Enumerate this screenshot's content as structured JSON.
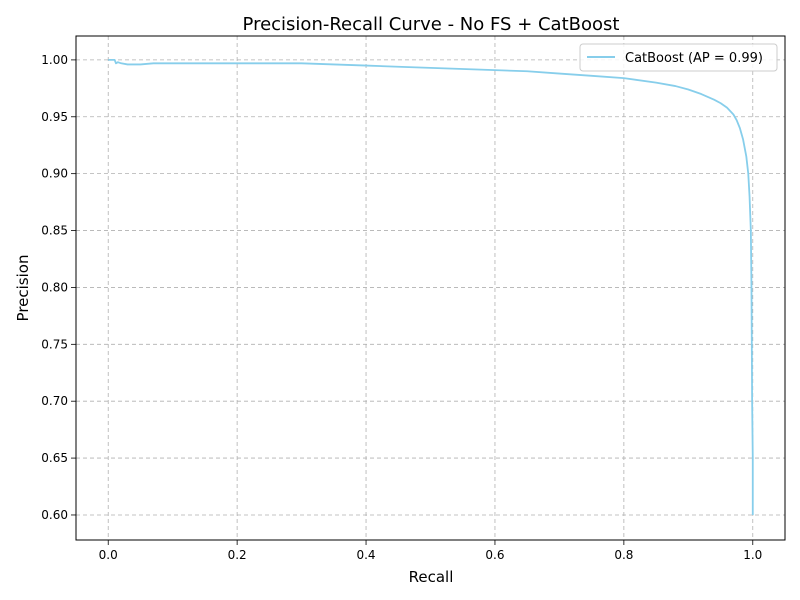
{
  "chart_data": {
    "type": "line",
    "title": "Precision-Recall Curve - No FS + CatBoost",
    "xlabel": "Recall",
    "ylabel": "Precision",
    "xlim": [
      -0.05,
      1.05
    ],
    "ylim": [
      0.578,
      1.021
    ],
    "x_ticks": [
      0.0,
      0.2,
      0.4,
      0.6,
      0.8,
      1.0
    ],
    "x_tick_labels": [
      "0.0",
      "0.2",
      "0.4",
      "0.6",
      "0.8",
      "1.0"
    ],
    "y_ticks": [
      0.6,
      0.65,
      0.7,
      0.75,
      0.8,
      0.85,
      0.9,
      0.95,
      1.0
    ],
    "y_tick_labels": [
      "0.60",
      "0.65",
      "0.70",
      "0.75",
      "0.80",
      "0.85",
      "0.90",
      "0.95",
      "1.00"
    ],
    "grid": true,
    "legend_position": "top-right",
    "series": [
      {
        "name": "CatBoost (AP = 0.99)",
        "color": "#87ceeb",
        "x": [
          0.0,
          0.01,
          0.012,
          0.015,
          0.02,
          0.03,
          0.05,
          0.07,
          0.1,
          0.15,
          0.2,
          0.3,
          0.4,
          0.45,
          0.5,
          0.55,
          0.6,
          0.65,
          0.7,
          0.75,
          0.8,
          0.85,
          0.88,
          0.9,
          0.92,
          0.94,
          0.95,
          0.96,
          0.97,
          0.975,
          0.98,
          0.985,
          0.99,
          0.993,
          0.995,
          0.997,
          0.998,
          0.999,
          1.0,
          1.0
        ],
        "y": [
          1.0,
          1.0,
          0.997,
          0.998,
          0.997,
          0.996,
          0.996,
          0.997,
          0.997,
          0.997,
          0.997,
          0.997,
          0.995,
          0.994,
          0.993,
          0.992,
          0.991,
          0.99,
          0.988,
          0.986,
          0.984,
          0.98,
          0.977,
          0.974,
          0.97,
          0.965,
          0.962,
          0.958,
          0.952,
          0.947,
          0.94,
          0.93,
          0.915,
          0.9,
          0.88,
          0.85,
          0.8,
          0.7,
          0.65,
          0.6
        ]
      }
    ]
  }
}
